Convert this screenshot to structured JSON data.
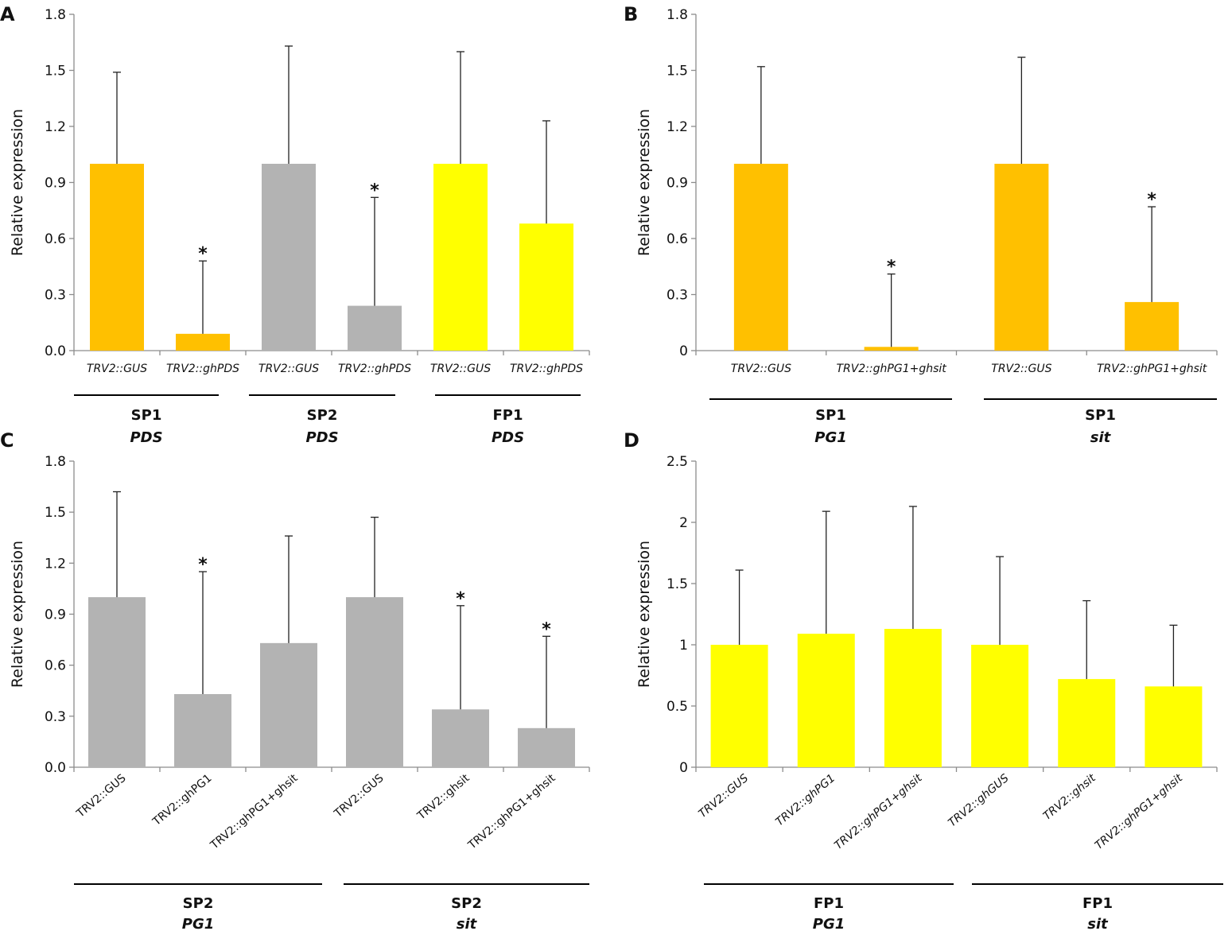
{
  "chart_data": [
    {
      "type": "bar",
      "panel": "A",
      "ylabel": "Relative expression",
      "ylim": [
        0,
        1.8
      ],
      "yticks": [
        "0.0",
        "0.3",
        "0.6",
        "0.9",
        "1.2",
        "1.5",
        "1.8"
      ],
      "category_label_style": "italic-horizontal",
      "categories": [
        "TRV2::GUS",
        "TRV2::ghPDS",
        "TRV2::GUS",
        "TRV2::ghPDS",
        "TRV2::GUS",
        "TRV2::ghPDS"
      ],
      "values": [
        1.0,
        0.09,
        1.0,
        0.24,
        1.0,
        0.68
      ],
      "error_upper": [
        1.49,
        0.48,
        1.63,
        0.82,
        1.6,
        1.23
      ],
      "bar_colors": [
        "#FFC000",
        "#FFC000",
        "#B3B3B3",
        "#B3B3B3",
        "#FFFF00",
        "#FFFF00"
      ],
      "significance": [
        "",
        "*",
        "",
        "*",
        "",
        ""
      ],
      "groups": [
        {
          "label": "SP1",
          "gene": "PDS",
          "span": [
            0,
            1
          ]
        },
        {
          "label": "SP2",
          "gene": "PDS",
          "span": [
            2,
            3
          ]
        },
        {
          "label": "FP1",
          "gene": "PDS",
          "span": [
            4,
            5
          ]
        }
      ]
    },
    {
      "type": "bar",
      "panel": "B",
      "ylabel": "Relative expression",
      "ylim": [
        0,
        1.8
      ],
      "yticks": [
        "0",
        "0.3",
        "0.6",
        "0.9",
        "1.2",
        "1.5",
        "1.8"
      ],
      "category_label_style": "italic-horizontal",
      "categories": [
        "TRV2::GUS",
        "TRV2::ghPG1+ghsit",
        "TRV2::GUS",
        "TRV2::ghPG1+ghsit"
      ],
      "values": [
        1.0,
        0.02,
        1.0,
        0.26
      ],
      "error_upper": [
        1.52,
        0.41,
        1.57,
        0.77
      ],
      "bar_colors": [
        "#FFC000",
        "#FFC000",
        "#FFC000",
        "#FFC000"
      ],
      "significance": [
        "",
        "*",
        "",
        "*"
      ],
      "groups": [
        {
          "label": "SP1",
          "gene": "PG1",
          "span": [
            0,
            1
          ]
        },
        {
          "label": "SP1",
          "gene": "sit",
          "span": [
            2,
            3
          ]
        }
      ]
    },
    {
      "type": "bar",
      "panel": "C",
      "ylabel": "Relative expression",
      "ylim": [
        0,
        1.8
      ],
      "yticks": [
        "0.0",
        "0.3",
        "0.6",
        "0.9",
        "1.2",
        "1.5",
        "1.8"
      ],
      "category_label_style": "rotated",
      "categories": [
        "TRV2::GUS",
        "TRV2::ghPG1",
        "TRV2::ghPG1+ghsit",
        "TRV2::GUS",
        "TRV2::ghsit",
        "TRV2::ghPG1+ghsit"
      ],
      "values": [
        1.0,
        0.43,
        0.73,
        1.0,
        0.34,
        0.23
      ],
      "error_upper": [
        1.62,
        1.15,
        1.36,
        1.47,
        0.95,
        0.77
      ],
      "bar_colors": [
        "#B3B3B3",
        "#B3B3B3",
        "#B3B3B3",
        "#B3B3B3",
        "#B3B3B3",
        "#B3B3B3"
      ],
      "significance": [
        "",
        "*",
        "",
        "",
        "*",
        "*"
      ],
      "groups": [
        {
          "label": "SP2",
          "gene": "PG1",
          "span": [
            0,
            2
          ]
        },
        {
          "label": "SP2",
          "gene": "sit",
          "span": [
            3,
            5
          ]
        }
      ]
    },
    {
      "type": "bar",
      "panel": "D",
      "ylabel": "Relative expression",
      "ylim": [
        0,
        2.5
      ],
      "yticks": [
        "0",
        "0.5",
        "1",
        "1.5",
        "2",
        "2.5"
      ],
      "category_label_style": "rotated-italic",
      "categories": [
        "TRV2::GUS",
        "TRV2::ghPG1",
        "TRV2::ghPG1+ghsit",
        "TRV2::ghGUS",
        "TRV2::ghsit",
        "TRV2::ghPG1+ghsit"
      ],
      "values": [
        1.0,
        1.09,
        1.13,
        1.0,
        0.72,
        0.66
      ],
      "error_upper": [
        1.61,
        2.09,
        2.13,
        1.72,
        1.36,
        1.16
      ],
      "bar_colors": [
        "#FFFF00",
        "#FFFF00",
        "#FFFF00",
        "#FFFF00",
        "#FFFF00",
        "#FFFF00"
      ],
      "significance": [
        "",
        "",
        "",
        "",
        "",
        ""
      ],
      "groups": [
        {
          "label": "FP1",
          "gene": "PG1",
          "span": [
            0,
            2
          ]
        },
        {
          "label": "FP1",
          "gene": "sit",
          "span": [
            3,
            5
          ]
        }
      ]
    }
  ]
}
